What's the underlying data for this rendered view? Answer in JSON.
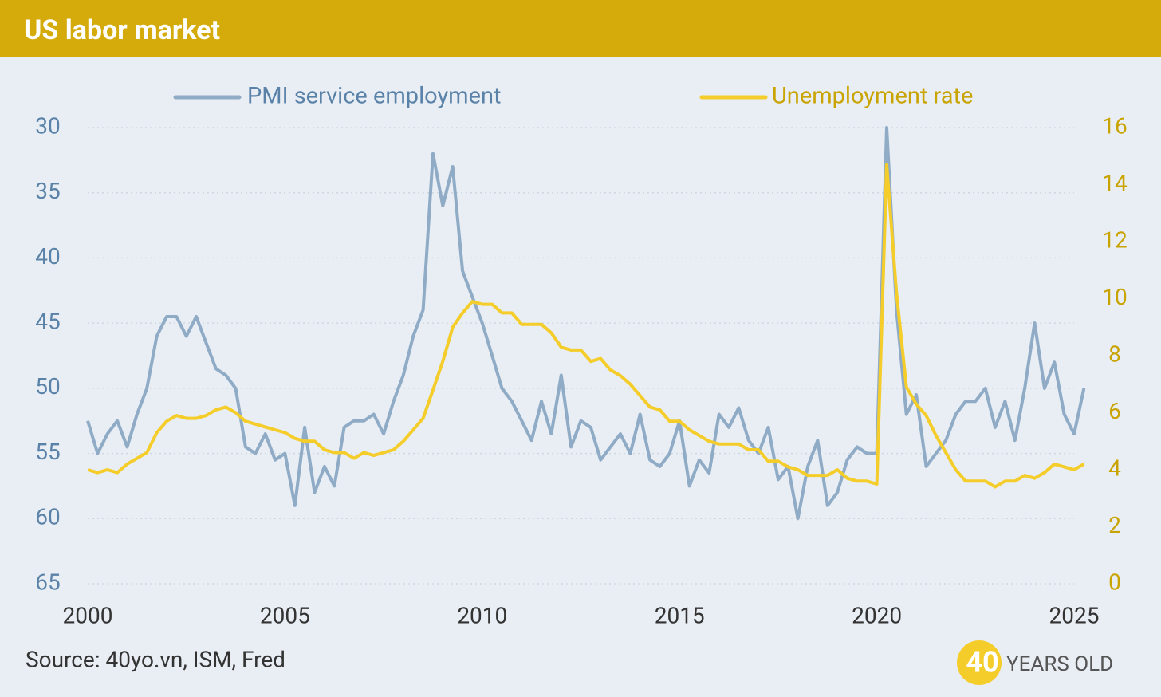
{
  "chart_data": {
    "type": "line",
    "title": "US labor market",
    "source": "Source: 40yo.vn, ISM, Fred",
    "logo": {
      "number": "40",
      "text": "YEARS OLD"
    },
    "x": [
      2000,
      2000.25,
      2000.5,
      2000.75,
      2001,
      2001.25,
      2001.5,
      2001.75,
      2002,
      2002.25,
      2002.5,
      2002.75,
      2003,
      2003.25,
      2003.5,
      2003.75,
      2004,
      2004.25,
      2004.5,
      2004.75,
      2005,
      2005.25,
      2005.5,
      2005.75,
      2006,
      2006.25,
      2006.5,
      2006.75,
      2007,
      2007.25,
      2007.5,
      2007.75,
      2008,
      2008.25,
      2008.5,
      2008.75,
      2009,
      2009.25,
      2009.5,
      2009.75,
      2010,
      2010.25,
      2010.5,
      2010.75,
      2011,
      2011.25,
      2011.5,
      2011.75,
      2012,
      2012.25,
      2012.5,
      2012.75,
      2013,
      2013.25,
      2013.5,
      2013.75,
      2014,
      2014.25,
      2014.5,
      2014.75,
      2015,
      2015.25,
      2015.5,
      2015.75,
      2016,
      2016.25,
      2016.5,
      2016.75,
      2017,
      2017.25,
      2017.5,
      2017.75,
      2018,
      2018.25,
      2018.5,
      2018.75,
      2019,
      2019.25,
      2019.5,
      2019.75,
      2020,
      2020.25,
      2020.5,
      2020.75,
      2021,
      2021.25,
      2021.5,
      2021.75,
      2022,
      2022.25,
      2022.5,
      2022.75,
      2023,
      2023.25,
      2023.5,
      2023.75,
      2024,
      2024.25,
      2024.5,
      2024.75,
      2025,
      2025.25
    ],
    "series": [
      {
        "name": "PMI service employment",
        "color": "#8fabc6",
        "axis": "y",
        "values": [
          52.5,
          55,
          53.5,
          52.5,
          54.5,
          52,
          50,
          46,
          44.5,
          44.5,
          46,
          44.5,
          46.5,
          48.5,
          49,
          50,
          54.5,
          55,
          53.5,
          55.5,
          55,
          59,
          53,
          58,
          56,
          57.5,
          53,
          52.5,
          52.5,
          52,
          53.5,
          51,
          49,
          46,
          44,
          32,
          36,
          33,
          41,
          43,
          45,
          47.5,
          50,
          51,
          52.5,
          54,
          51,
          53.5,
          49,
          54.5,
          52.5,
          53,
          55.5,
          54.5,
          53.5,
          55,
          52,
          55.5,
          56,
          55,
          52.5,
          57.5,
          55.5,
          56.5,
          52,
          53,
          51.5,
          54,
          55,
          53,
          57,
          56,
          60,
          56,
          54,
          59,
          58,
          55.5,
          54.5,
          55,
          55,
          30,
          44,
          52,
          50.5,
          56,
          55,
          54,
          52,
          51,
          51,
          50,
          53,
          51,
          54,
          50,
          45,
          50,
          48,
          52,
          53.5,
          50
        ]
      },
      {
        "name": "Unemployment rate",
        "color": "#f5cd2a",
        "axis": "y2",
        "values": [
          4.0,
          3.9,
          4.0,
          3.9,
          4.2,
          4.4,
          4.6,
          5.3,
          5.7,
          5.9,
          5.8,
          5.8,
          5.9,
          6.1,
          6.2,
          6.0,
          5.7,
          5.6,
          5.5,
          5.4,
          5.3,
          5.1,
          5.0,
          5.0,
          4.7,
          4.6,
          4.6,
          4.4,
          4.6,
          4.5,
          4.6,
          4.7,
          5.0,
          5.4,
          5.8,
          6.8,
          7.8,
          9.0,
          9.5,
          9.9,
          9.8,
          9.8,
          9.5,
          9.5,
          9.1,
          9.1,
          9.1,
          8.8,
          8.3,
          8.2,
          8.2,
          7.8,
          7.9,
          7.5,
          7.3,
          7.0,
          6.6,
          6.2,
          6.1,
          5.7,
          5.7,
          5.4,
          5.2,
          5.0,
          4.9,
          4.9,
          4.9,
          4.7,
          4.7,
          4.3,
          4.3,
          4.1,
          4.0,
          3.8,
          3.8,
          3.8,
          4.0,
          3.7,
          3.6,
          3.6,
          3.5,
          14.7,
          10.2,
          6.9,
          6.3,
          5.9,
          5.2,
          4.6,
          4.0,
          3.6,
          3.6,
          3.6,
          3.4,
          3.6,
          3.6,
          3.8,
          3.7,
          3.9,
          4.2,
          4.1,
          4.0,
          4.2
        ]
      }
    ],
    "xlim": [
      2000,
      2025
    ],
    "xticks": [
      2000,
      2005,
      2010,
      2015,
      2020,
      2025
    ],
    "ylim": [
      65,
      30
    ],
    "yticks": [
      30,
      35,
      40,
      45,
      50,
      55,
      60,
      65
    ],
    "y2lim": [
      0,
      16
    ],
    "y2ticks": [
      0,
      2,
      4,
      6,
      8,
      10,
      12,
      14,
      16
    ],
    "grid": true
  }
}
